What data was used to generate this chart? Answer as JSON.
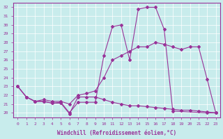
{
  "xlabel": "Windchill (Refroidissement éolien,°C)",
  "bg_color": "#c8ecec",
  "line_color": "#993399",
  "xlim": [
    -0.5,
    23.5
  ],
  "ylim": [
    19.5,
    32.5
  ],
  "yticks": [
    20,
    21,
    22,
    23,
    24,
    25,
    26,
    27,
    28,
    29,
    30,
    31,
    32
  ],
  "xticks": [
    0,
    1,
    2,
    3,
    4,
    5,
    6,
    7,
    8,
    9,
    10,
    11,
    12,
    13,
    14,
    15,
    16,
    17,
    18,
    19,
    20,
    21,
    22,
    23
  ],
  "line1_x": [
    0,
    1,
    2,
    3,
    4,
    5,
    6,
    7,
    8,
    9,
    10,
    11,
    12,
    13,
    14,
    15,
    16,
    17,
    18,
    22,
    23
  ],
  "line1_y": [
    23.0,
    21.8,
    21.3,
    21.3,
    21.1,
    21.2,
    20.0,
    21.2,
    21.2,
    21.2,
    26.5,
    29.8,
    30.0,
    26.0,
    31.8,
    32.0,
    32.0,
    29.5,
    20.2,
    20.0,
    20.0
  ],
  "line2_x": [
    0,
    1,
    2,
    3,
    4,
    5,
    6,
    7,
    8,
    9,
    10,
    11,
    12,
    13,
    14,
    15,
    16,
    17,
    18,
    19,
    20,
    21,
    22,
    23
  ],
  "line2_y": [
    23.0,
    21.8,
    21.3,
    21.5,
    21.3,
    21.3,
    21.0,
    22.0,
    22.2,
    22.5,
    24.0,
    26.0,
    26.5,
    27.0,
    27.5,
    27.5,
    28.0,
    27.8,
    27.5,
    27.2,
    27.5,
    27.5,
    23.8,
    20.0
  ],
  "line3_x": [
    0,
    1,
    2,
    3,
    4,
    5,
    6,
    7,
    8,
    9,
    10,
    11,
    12,
    13,
    14,
    15,
    16,
    17,
    18,
    19,
    20,
    21,
    22,
    23
  ],
  "line3_y": [
    23.0,
    21.8,
    21.3,
    21.3,
    21.1,
    21.1,
    19.9,
    21.8,
    21.8,
    21.8,
    21.5,
    21.2,
    21.0,
    20.8,
    20.8,
    20.7,
    20.6,
    20.5,
    20.4,
    20.3,
    20.3,
    20.2,
    20.1,
    20.0
  ]
}
